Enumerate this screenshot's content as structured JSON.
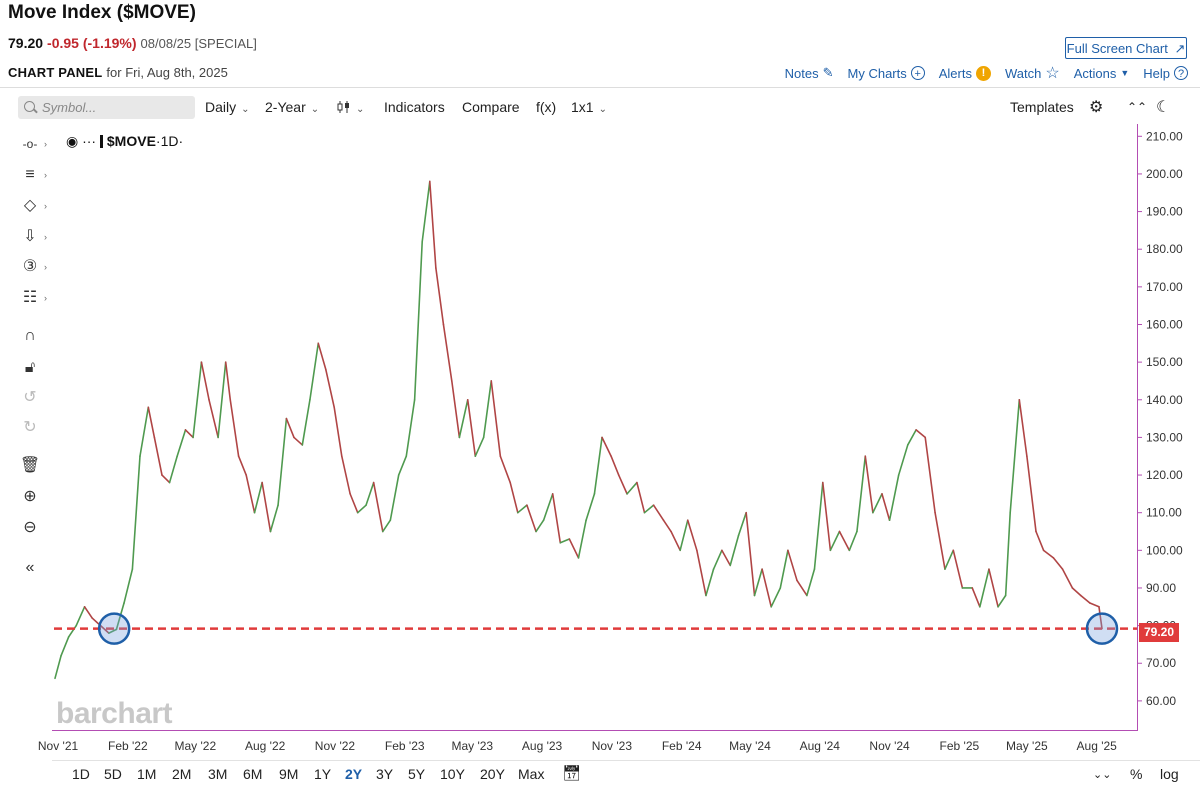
{
  "header": {
    "title": "Move Index ($MOVE)",
    "price": "79.20",
    "change": "-0.95 (-1.19%)",
    "date_note": "08/08/25 [SPECIAL]",
    "full_screen_label": "Full Screen Chart",
    "panel_label": "CHART PANEL",
    "panel_for": "for Fri, Aug 8th, 2025"
  },
  "top_links": {
    "notes": "Notes",
    "my_charts": "My Charts",
    "alerts": "Alerts",
    "watch": "Watch",
    "actions": "Actions",
    "help": "Help"
  },
  "toolbar": {
    "search_placeholder": "Symbol...",
    "interval": "Daily",
    "range": "2-Year",
    "indicators": "Indicators",
    "compare": "Compare",
    "fx": "f(x)",
    "layout": "1x1",
    "templates": "Templates"
  },
  "legend": {
    "prefix": "···",
    "symbol": "$MOVE",
    "interval": "·1D·"
  },
  "price_label": "79.20",
  "watermark": "barchart",
  "range_buttons": [
    "1D",
    "5D",
    "1M",
    "2M",
    "3M",
    "6M",
    "9M",
    "1Y",
    "2Y",
    "3Y",
    "5Y",
    "10Y",
    "20Y",
    "Max"
  ],
  "selected_range": "2Y",
  "scale_buttons": {
    "percent": "%",
    "log": "log"
  },
  "colors": {
    "up": "#4f9a4f",
    "down": "#b04545",
    "price_line": "#e03b3b",
    "axis": "#b34db3",
    "link": "#1f5fa8",
    "highlight_circle": "#1f5fa8"
  },
  "chart_data": {
    "type": "line",
    "title": "Move Index ($MOVE)",
    "xlabel": "",
    "ylabel": "",
    "ylim": [
      52,
      213
    ],
    "y_ticks": [
      60,
      70,
      80,
      90,
      100,
      110,
      120,
      130,
      140,
      150,
      160,
      170,
      180,
      190,
      200,
      210
    ],
    "y_tick_labels": [
      "60.00",
      "70.00",
      "80.00",
      "90.00",
      "100.00",
      "110.00",
      "120.00",
      "130.00",
      "140.00",
      "150.00",
      "160.00",
      "170.00",
      "180.00",
      "190.00",
      "200.00",
      "210.00"
    ],
    "x_tick_labels": [
      "Nov '21",
      "Feb '22",
      "May '22",
      "Aug '22",
      "Nov '22",
      "Feb '23",
      "May '23",
      "Aug '23",
      "Nov '23",
      "Feb '24",
      "May '24",
      "Aug '24",
      "Nov '24",
      "Feb '25",
      "May '25",
      "Aug '25"
    ],
    "series": [
      {
        "x": [
          "2021-10-28",
          "2021-11-05",
          "2021-11-15",
          "2021-11-25",
          "2021-12-06",
          "2021-12-16",
          "2021-12-27",
          "2022-01-07",
          "2022-01-17",
          "2022-01-27",
          "2022-02-07",
          "2022-02-17",
          "2022-02-28",
          "2022-03-08",
          "2022-03-18",
          "2022-03-28",
          "2022-04-07",
          "2022-04-18",
          "2022-04-28",
          "2022-05-09",
          "2022-05-19",
          "2022-05-31",
          "2022-06-10",
          "2022-06-16",
          "2022-06-27",
          "2022-07-07",
          "2022-07-18",
          "2022-07-28",
          "2022-08-08",
          "2022-08-18",
          "2022-08-29",
          "2022-09-08",
          "2022-09-19",
          "2022-09-29",
          "2022-10-10",
          "2022-10-20",
          "2022-10-31",
          "2022-11-10",
          "2022-11-21",
          "2022-12-01",
          "2022-12-12",
          "2022-12-22",
          "2023-01-03",
          "2023-01-13",
          "2023-01-24",
          "2023-02-03",
          "2023-02-14",
          "2023-02-24",
          "2023-03-06",
          "2023-03-14",
          "2023-03-24",
          "2023-04-04",
          "2023-04-14",
          "2023-04-25",
          "2023-05-05",
          "2023-05-16",
          "2023-05-26",
          "2023-06-07",
          "2023-06-20",
          "2023-06-30",
          "2023-07-12",
          "2023-07-24",
          "2023-08-03",
          "2023-08-15",
          "2023-08-25",
          "2023-09-06",
          "2023-09-18",
          "2023-09-28",
          "2023-10-09",
          "2023-10-19",
          "2023-10-31",
          "2023-11-10",
          "2023-11-21",
          "2023-12-04",
          "2023-12-14",
          "2023-12-26",
          "2024-01-08",
          "2024-01-18",
          "2024-01-30",
          "2024-02-09",
          "2024-02-21",
          "2024-03-04",
          "2024-03-14",
          "2024-03-25",
          "2024-04-05",
          "2024-04-16",
          "2024-04-26",
          "2024-05-07",
          "2024-05-17",
          "2024-05-29",
          "2024-06-10",
          "2024-06-20",
          "2024-07-02",
          "2024-07-15",
          "2024-07-25",
          "2024-08-05",
          "2024-08-15",
          "2024-08-27",
          "2024-09-09",
          "2024-09-19",
          "2024-09-30",
          "2024-10-10",
          "2024-10-22",
          "2024-11-01",
          "2024-11-13",
          "2024-11-25",
          "2024-12-06",
          "2024-12-18",
          "2024-12-31",
          "2025-01-13",
          "2025-01-24",
          "2025-02-05",
          "2025-02-18",
          "2025-02-28",
          "2025-03-12",
          "2025-03-24",
          "2025-04-03",
          "2025-04-09",
          "2025-04-21",
          "2025-05-01",
          "2025-05-13",
          "2025-05-23",
          "2025-06-05",
          "2025-06-17",
          "2025-06-30",
          "2025-07-11",
          "2025-07-23",
          "2025-08-04",
          "2025-08-08"
        ],
        "y": [
          66,
          72,
          77,
          80,
          85,
          82,
          80,
          78,
          79,
          86,
          95,
          125,
          138,
          130,
          120,
          118,
          125,
          132,
          130,
          150,
          140,
          130,
          150,
          140,
          125,
          120,
          110,
          118,
          105,
          112,
          135,
          130,
          128,
          140,
          155,
          148,
          138,
          125,
          115,
          110,
          112,
          118,
          105,
          108,
          120,
          125,
          140,
          182,
          198,
          175,
          160,
          145,
          130,
          140,
          125,
          130,
          145,
          125,
          118,
          110,
          112,
          105,
          108,
          115,
          102,
          103,
          98,
          108,
          115,
          130,
          125,
          120,
          115,
          118,
          110,
          112,
          108,
          105,
          100,
          108,
          100,
          88,
          95,
          100,
          96,
          104,
          110,
          88,
          95,
          85,
          90,
          100,
          92,
          88,
          95,
          118,
          100,
          105,
          100,
          105,
          125,
          110,
          115,
          108,
          120,
          128,
          132,
          130,
          110,
          95,
          100,
          90,
          90,
          85,
          95,
          85,
          88,
          110,
          140,
          125,
          105,
          100,
          98,
          95,
          90,
          88,
          86,
          85,
          79.2
        ]
      }
    ],
    "last_price": 79.2,
    "highlight_points": [
      {
        "x": "2022-01-14",
        "y": 79.2
      },
      {
        "x": "2025-08-08",
        "y": 79.2
      }
    ]
  }
}
